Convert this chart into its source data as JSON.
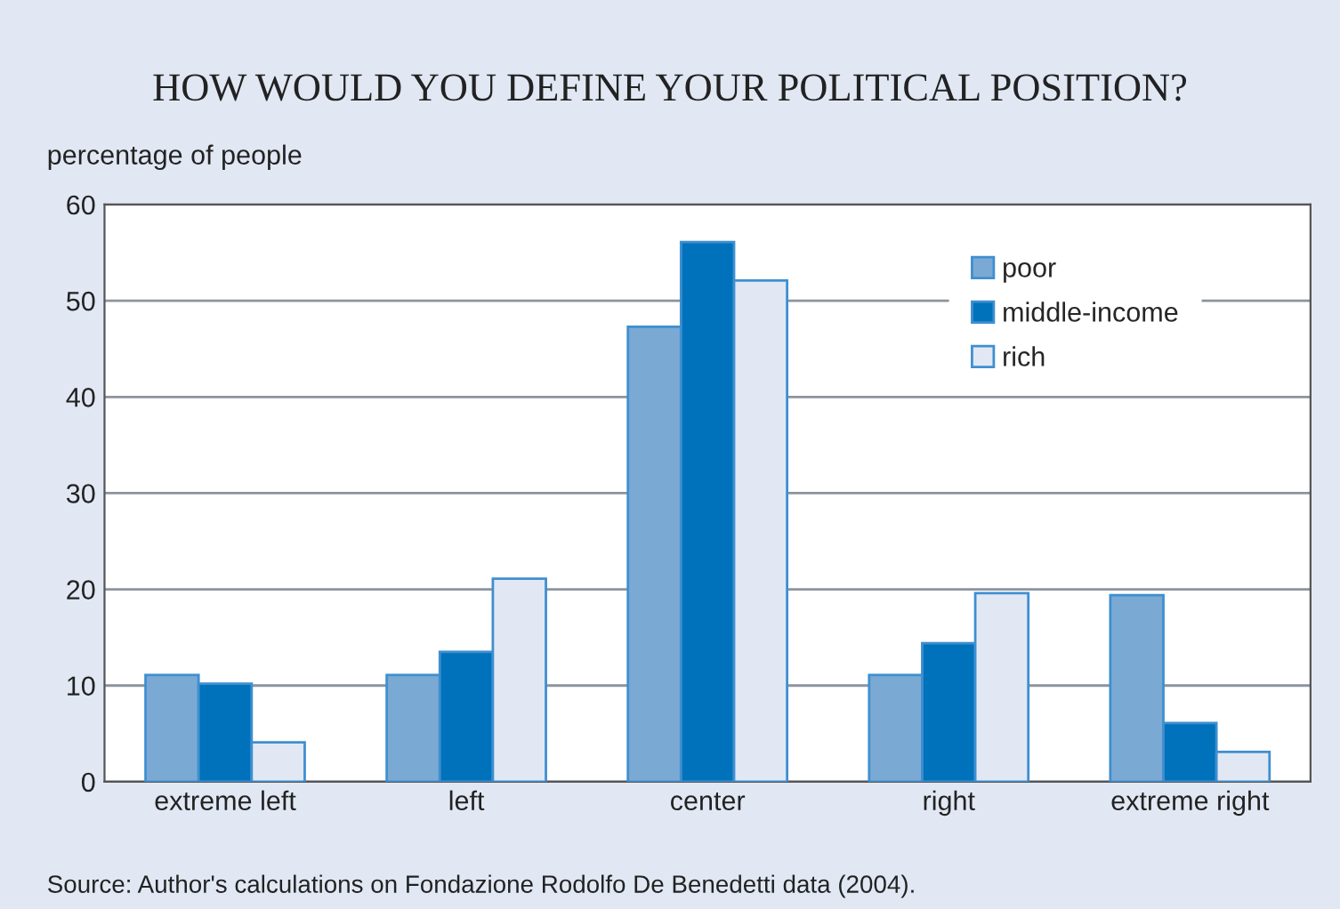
{
  "chart_data": {
    "type": "bar",
    "title": "HOW WOULD YOU DEFINE YOUR POLITICAL POSITION?",
    "ylabel": "percentage of people",
    "categories": [
      "extreme left",
      "left",
      "center",
      "right",
      "extreme right"
    ],
    "series": [
      {
        "name": "poor",
        "color": "#7aaad4",
        "values": [
          11.1,
          11.1,
          47.3,
          11.1,
          19.4
        ]
      },
      {
        "name": "middle-income",
        "color": "#0072bc",
        "values": [
          10.2,
          13.5,
          56.1,
          14.4,
          6.1
        ]
      },
      {
        "name": "rich",
        "color": "#e1e8f4",
        "values": [
          4.1,
          21.1,
          52.1,
          19.6,
          3.1
        ]
      }
    ],
    "ylim": [
      0,
      60
    ],
    "yticks": [
      0,
      10,
      20,
      30,
      40,
      50,
      60
    ],
    "grid": "y",
    "legend": "top right",
    "annotations": [
      "Source: Author's calculations on Fondazione Rodolfo De Benedetti data (2004)."
    ]
  }
}
